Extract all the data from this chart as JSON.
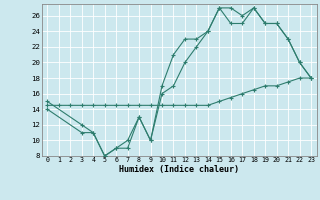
{
  "xlabel": "Humidex (Indice chaleur)",
  "bg_color": "#cce8ee",
  "line_color": "#2e7d6e",
  "grid_color": "#ffffff",
  "xlim": [
    -0.5,
    23.5
  ],
  "ylim": [
    8,
    27.5
  ],
  "xticks": [
    0,
    1,
    2,
    3,
    4,
    5,
    6,
    7,
    8,
    9,
    10,
    11,
    12,
    13,
    14,
    15,
    16,
    17,
    18,
    19,
    20,
    21,
    22,
    23
  ],
  "yticks": [
    8,
    10,
    12,
    14,
    16,
    18,
    20,
    22,
    24,
    26
  ],
  "curve1_x": [
    0,
    1,
    2,
    3,
    4,
    5,
    6,
    7,
    8,
    9,
    10,
    11,
    12,
    13,
    14,
    15,
    16,
    17,
    18,
    19,
    20,
    21,
    22,
    23
  ],
  "curve1_y": [
    14.5,
    14.5,
    14.5,
    14.5,
    14.5,
    14.5,
    14.5,
    14.5,
    14.5,
    14.5,
    14.5,
    14.5,
    14.5,
    14.5,
    14.5,
    15,
    15.5,
    16,
    16.5,
    17,
    17,
    17.5,
    18,
    18
  ],
  "curve2_x": [
    0,
    3,
    4,
    5,
    6,
    7,
    8,
    9,
    10,
    11,
    12,
    13,
    14,
    15,
    16,
    17,
    18,
    19,
    20,
    21,
    22,
    23
  ],
  "curve2_y": [
    14,
    11,
    11,
    8,
    9,
    10,
    13,
    10,
    16,
    17,
    20,
    22,
    24,
    27,
    27,
    26,
    27,
    25,
    25,
    23,
    20,
    18
  ],
  "curve3_x": [
    0,
    3,
    4,
    5,
    6,
    7,
    8,
    9,
    10,
    11,
    12,
    13,
    14,
    15,
    16,
    17,
    18,
    19,
    20,
    21,
    22,
    23
  ],
  "curve3_y": [
    15,
    12,
    11,
    8,
    9,
    9,
    13,
    10,
    17,
    21,
    23,
    23,
    24,
    27,
    25,
    25,
    27,
    25,
    25,
    23,
    20,
    18
  ],
  "xlabel_fontsize": 6.0,
  "tick_fontsize": 4.8,
  "marker_size": 3.0
}
